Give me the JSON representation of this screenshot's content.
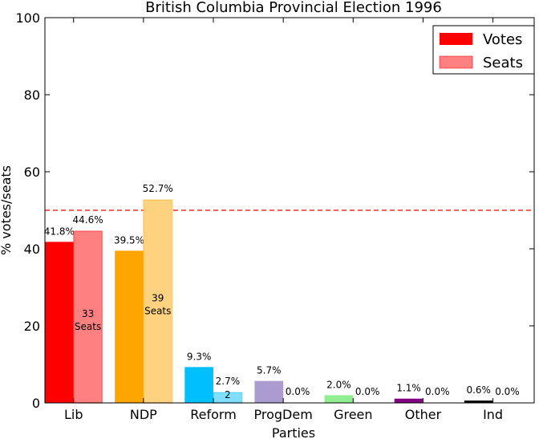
{
  "chart_data": {
    "type": "bar",
    "title": "British Columbia Provincial Election 1996",
    "xlabel": "Parties",
    "ylabel": "% votes/seats",
    "ylim": [
      0,
      100
    ],
    "yticks": [
      "0",
      "20",
      "40",
      "60",
      "80",
      "100"
    ],
    "grid": false,
    "legend_position": "top-right",
    "majority_line": 50,
    "categories": [
      "Lib",
      "NDP",
      "Reform",
      "ProgDem",
      "Green",
      "Other",
      "Ind"
    ],
    "series": [
      {
        "name": "Votes",
        "values": [
          41.8,
          39.5,
          9.3,
          5.7,
          2.0,
          1.1,
          0.6
        ],
        "labels": [
          "41.8%",
          "39.5%",
          "9.3%",
          "5.7%",
          "2.0%",
          "1.1%",
          "0.6%"
        ]
      },
      {
        "name": "Seats",
        "values": [
          44.6,
          52.7,
          2.7,
          0.0,
          0.0,
          0.0,
          0.0
        ],
        "labels": [
          "44.6%",
          "52.7%",
          "2.7%",
          "0.0%",
          "0.0%",
          "0.0%",
          "0.0%"
        ],
        "seat_counts": [
          "33",
          "39",
          "2",
          "",
          "",
          "",
          ""
        ],
        "seat_word": "Seats"
      }
    ],
    "colors": {
      "votes": [
        "#ff0000",
        "#ffa500",
        "#00bfff",
        "#ab9bd0",
        "#90ee90",
        "#800080",
        "#000000"
      ],
      "seats": [
        "#ff8080",
        "#ffd280",
        "#80dfff",
        "#d5cde8",
        "#c8f7c8",
        "#c080c0",
        "#808080"
      ],
      "legend_votes": "#ff0000",
      "legend_seats": "#ff8080",
      "majority_line": "#ff0000"
    }
  }
}
